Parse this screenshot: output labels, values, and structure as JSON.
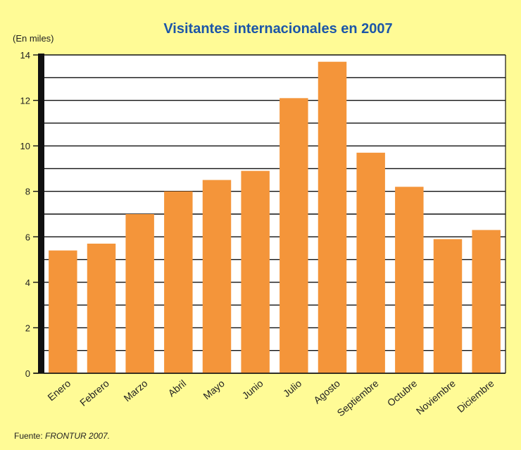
{
  "chart_data": {
    "type": "bar",
    "title": "Visitantes internacionales en 2007",
    "ylabel": "(En miles)",
    "categories": [
      "Enero",
      "Febrero",
      "Marzo",
      "Abril",
      "Mayo",
      "Junio",
      "Julio",
      "Agosto",
      "Septiembre",
      "Octubre",
      "Noviembre",
      "Diciembre"
    ],
    "values": [
      5.4,
      5.7,
      7.0,
      8.0,
      8.5,
      8.9,
      12.1,
      13.7,
      9.7,
      8.2,
      5.9,
      6.3
    ],
    "ylim": [
      0,
      14
    ],
    "yticks": [
      0,
      2,
      4,
      6,
      8,
      10,
      12,
      14
    ],
    "grid": true,
    "bar_color": "#f4953a",
    "background_color": "#fffb96"
  },
  "source": {
    "prefix": "Fuente: ",
    "name": "FRONTUR 2007."
  }
}
